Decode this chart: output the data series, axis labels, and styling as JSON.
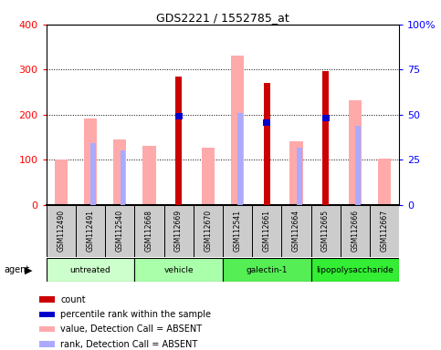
{
  "title": "GDS2221 / 1552785_at",
  "samples": [
    "GSM112490",
    "GSM112491",
    "GSM112540",
    "GSM112668",
    "GSM112669",
    "GSM112670",
    "GSM112541",
    "GSM112661",
    "GSM112664",
    "GSM112665",
    "GSM112666",
    "GSM112667"
  ],
  "groups": [
    {
      "label": "untreated",
      "start": 0,
      "end": 2,
      "color": "#ccffcc"
    },
    {
      "label": "vehicle",
      "start": 3,
      "end": 5,
      "color": "#aaffaa"
    },
    {
      "label": "galectin-1",
      "start": 6,
      "end": 8,
      "color": "#55ee55"
    },
    {
      "label": "lipopolysaccharide",
      "start": 9,
      "end": 11,
      "color": "#33ee33"
    }
  ],
  "count": [
    null,
    null,
    null,
    null,
    285,
    null,
    null,
    270,
    null,
    297,
    null,
    null
  ],
  "percentile_rank": [
    null,
    null,
    null,
    null,
    197,
    null,
    null,
    182,
    null,
    192,
    null,
    null
  ],
  "value_absent": [
    100,
    192,
    145,
    130,
    null,
    127,
    330,
    null,
    140,
    null,
    232,
    102
  ],
  "rank_absent": [
    null,
    137,
    120,
    null,
    null,
    null,
    203,
    null,
    127,
    null,
    175,
    null
  ],
  "left_ylim": [
    0,
    400
  ],
  "right_ylim": [
    0,
    400
  ],
  "left_yticks": [
    0,
    100,
    200,
    300,
    400
  ],
  "right_yticks_vals": [
    0,
    100,
    200,
    300,
    400
  ],
  "right_yticks_labels": [
    "0",
    "25",
    "50",
    "75",
    "100%"
  ],
  "color_count": "#cc0000",
  "color_percentile": "#0000cc",
  "color_value_absent": "#ffaaaa",
  "color_rank_absent": "#aaaaff",
  "background_label": "#cccccc"
}
